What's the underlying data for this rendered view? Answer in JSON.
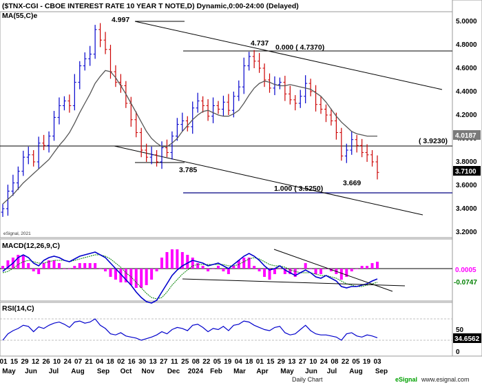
{
  "chart_data": [
    {
      "panel": "price",
      "type": "candlestick",
      "title": "($TNX-CGI - CBOE INTEREST RATE 10 YEAR T NOTE,D) Dynamic,0:00-24:00 (Delayed)",
      "indicator_label": "MA(55,C)e",
      "watermark": "eSignal, 2021",
      "y_ticks": [
        "5.0000",
        "4.8000",
        "4.6000",
        "4.4000",
        "4.2000",
        "4.0000",
        "3.8000",
        "3.6000",
        "3.4000",
        "3.2000"
      ],
      "ylim": [
        3.15,
        5.1
      ],
      "close_series": [
        3.4,
        3.55,
        3.62,
        3.72,
        3.84,
        3.86,
        3.8,
        3.96,
        3.94,
        4.02,
        4.18,
        4.28,
        4.32,
        4.28,
        4.48,
        4.62,
        4.68,
        4.72,
        4.93,
        4.84,
        4.76,
        4.57,
        4.48,
        4.45,
        4.3,
        4.16,
        4.05,
        3.9,
        3.84,
        3.86,
        3.8,
        3.92,
        3.88,
        4.02,
        4.12,
        4.15,
        4.1,
        4.26,
        4.32,
        4.28,
        4.19,
        4.28,
        4.25,
        4.31,
        4.24,
        4.36,
        4.44,
        4.62,
        4.7,
        4.66,
        4.6,
        4.5,
        4.43,
        4.46,
        4.48,
        4.38,
        4.33,
        4.3,
        4.36,
        4.47,
        4.4,
        4.29,
        4.25,
        4.2,
        4.15,
        4.05,
        3.85,
        3.9,
        3.99,
        3.94,
        3.88,
        3.86,
        3.8,
        3.71
      ],
      "ma55": [
        3.44,
        3.48,
        3.52,
        3.57,
        3.62,
        3.66,
        3.7,
        3.74,
        3.78,
        3.82,
        3.88,
        3.94,
        3.99,
        4.05,
        4.13,
        4.22,
        4.3,
        4.38,
        4.47,
        4.53,
        4.58,
        4.57,
        4.52,
        4.45,
        4.38,
        4.3,
        4.22,
        4.14,
        4.06,
        4.0,
        3.96,
        3.93,
        3.93,
        3.96,
        4.0,
        4.06,
        4.11,
        4.16,
        4.2,
        4.23,
        4.24,
        4.22,
        4.2,
        4.19,
        4.19,
        4.21,
        4.24,
        4.3,
        4.37,
        4.43,
        4.47,
        4.49,
        4.48,
        4.46,
        4.45,
        4.45,
        4.46,
        4.45,
        4.44,
        4.43,
        4.42,
        4.39,
        4.36,
        4.31,
        4.25,
        4.19,
        4.14,
        4.1,
        4.06,
        4.04,
        4.03,
        4.02,
        4.02,
        4.02
      ],
      "annotations": [
        {
          "text": "4.997",
          "value": 4.997
        },
        {
          "text": "4.737",
          "value": 4.737
        },
        {
          "text": "0.000 ( 4.7370)",
          "value": 4.737
        },
        {
          "text": "3.785",
          "value": 3.785
        },
        {
          "text": "( 3.9230)",
          "value": 3.923
        },
        {
          "text": "3.669",
          "value": 3.669
        },
        {
          "text": "1.000 ( 3.5250)",
          "value": 3.525
        }
      ],
      "last_value_tags": [
        {
          "text": "4.0187",
          "value": 4.0187,
          "bg": "#7a7a7a",
          "fg": "#ffffff"
        },
        {
          "text": "3.7100",
          "value": 3.71,
          "bg": "#000000",
          "fg": "#ffffff"
        }
      ]
    },
    {
      "panel": "macd",
      "type": "line",
      "label": "MACD(12,26,9,C)",
      "ylim": [
        -0.26,
        0.13
      ],
      "macd": [
        -0.02,
        0.01,
        0.04,
        0.08,
        0.1,
        0.08,
        0.04,
        0.02,
        0.06,
        0.08,
        0.09,
        0.08,
        0.06,
        0.05,
        0.07,
        0.09,
        0.1,
        0.11,
        0.12,
        0.1,
        0.08,
        0.04,
        0.0,
        -0.04,
        -0.08,
        -0.12,
        -0.17,
        -0.21,
        -0.24,
        -0.25,
        -0.23,
        -0.17,
        -0.11,
        -0.05,
        -0.01,
        0.02,
        0.04,
        0.06,
        0.05,
        0.04,
        0.02,
        0.03,
        0.04,
        0.02,
        0.0,
        0.03,
        0.06,
        0.09,
        0.11,
        0.09,
        0.06,
        0.02,
        -0.01,
        0.0,
        0.02,
        -0.01,
        -0.03,
        -0.05,
        -0.03,
        -0.01,
        -0.03,
        -0.06,
        -0.07,
        -0.05,
        -0.07,
        -0.09,
        -0.13,
        -0.14,
        -0.13,
        -0.13,
        -0.12,
        -0.11,
        -0.09,
        -0.075
      ],
      "signal": [
        -0.03,
        -0.02,
        0.0,
        0.03,
        0.05,
        0.06,
        0.05,
        0.04,
        0.04,
        0.05,
        0.06,
        0.06,
        0.06,
        0.05,
        0.06,
        0.07,
        0.08,
        0.09,
        0.1,
        0.1,
        0.09,
        0.07,
        0.04,
        0.01,
        -0.03,
        -0.06,
        -0.1,
        -0.14,
        -0.18,
        -0.21,
        -0.22,
        -0.21,
        -0.17,
        -0.12,
        -0.08,
        -0.04,
        -0.01,
        0.02,
        0.03,
        0.03,
        0.03,
        0.03,
        0.03,
        0.03,
        0.02,
        0.02,
        0.03,
        0.05,
        0.07,
        0.08,
        0.07,
        0.05,
        0.03,
        0.02,
        0.02,
        0.01,
        -0.01,
        -0.02,
        -0.03,
        -0.03,
        -0.03,
        -0.04,
        -0.05,
        -0.05,
        -0.06,
        -0.07,
        -0.09,
        -0.11,
        -0.12,
        -0.13,
        -0.13,
        -0.12,
        -0.11,
        -0.1
      ],
      "last_value_tags": [
        {
          "text": "0.0005",
          "value": 0.0005,
          "bg": "#ffffff",
          "fg": "#ff00ff"
        },
        {
          "text": "-0.0747",
          "value": -0.0747,
          "bg": "#ffffff",
          "fg": "#008000"
        }
      ]
    },
    {
      "panel": "rsi",
      "type": "line",
      "label": "RSI(14,C)",
      "ylim": [
        0,
        100
      ],
      "y_ticks": [
        "50",
        "0"
      ],
      "rsi": [
        30,
        42,
        48,
        52,
        58,
        56,
        46,
        55,
        52,
        58,
        62,
        64,
        60,
        54,
        64,
        66,
        62,
        64,
        70,
        58,
        52,
        42,
        40,
        44,
        38,
        36,
        34,
        30,
        33,
        36,
        40,
        46,
        42,
        50,
        54,
        52,
        48,
        58,
        60,
        54,
        46,
        52,
        50,
        56,
        48,
        58,
        60,
        66,
        64,
        58,
        54,
        50,
        48,
        54,
        56,
        44,
        40,
        42,
        50,
        58,
        48,
        42,
        40,
        40,
        38,
        36,
        30,
        42,
        44,
        38,
        36,
        40,
        38,
        34.66
      ],
      "last_value_tags": [
        {
          "text": "34.6562",
          "value": 34.6562,
          "bg": "#000000",
          "fg": "#ffffff"
        }
      ]
    }
  ],
  "x_labels": {
    "days": [
      "01",
      "15",
      "29",
      "12",
      "26",
      "10",
      "24",
      "07",
      "21",
      "04",
      "18",
      "02",
      "16",
      "30",
      "13",
      "27",
      "11",
      "25",
      "08",
      "22",
      "05",
      "19",
      "04",
      "18",
      "01",
      "15",
      "29",
      "13",
      "27",
      "10",
      "24",
      "08",
      "22",
      "05",
      "19",
      "03"
    ],
    "months": [
      "May",
      "Jun",
      "Jul",
      "Aug",
      "Sep",
      "Oct",
      "Nov",
      "Dec",
      "2024",
      "Feb",
      "Mar",
      "Apr",
      "May",
      "Jun",
      "Jul",
      "Aug",
      "Sep"
    ]
  },
  "footer": {
    "copyright": "Daily Chart",
    "brand": "eSignal",
    "website": "www.esignal.com"
  },
  "colors": {
    "up_bar": "#0000cc",
    "down_bar": "#cc0000",
    "ma_line": "#555555",
    "macd_line": "#0000cc",
    "signal_line": "#008000",
    "macd_hist": "#ff00ff",
    "rsi_line": "#0000cc",
    "trendline": "#000000",
    "fib_line": "#000080"
  }
}
